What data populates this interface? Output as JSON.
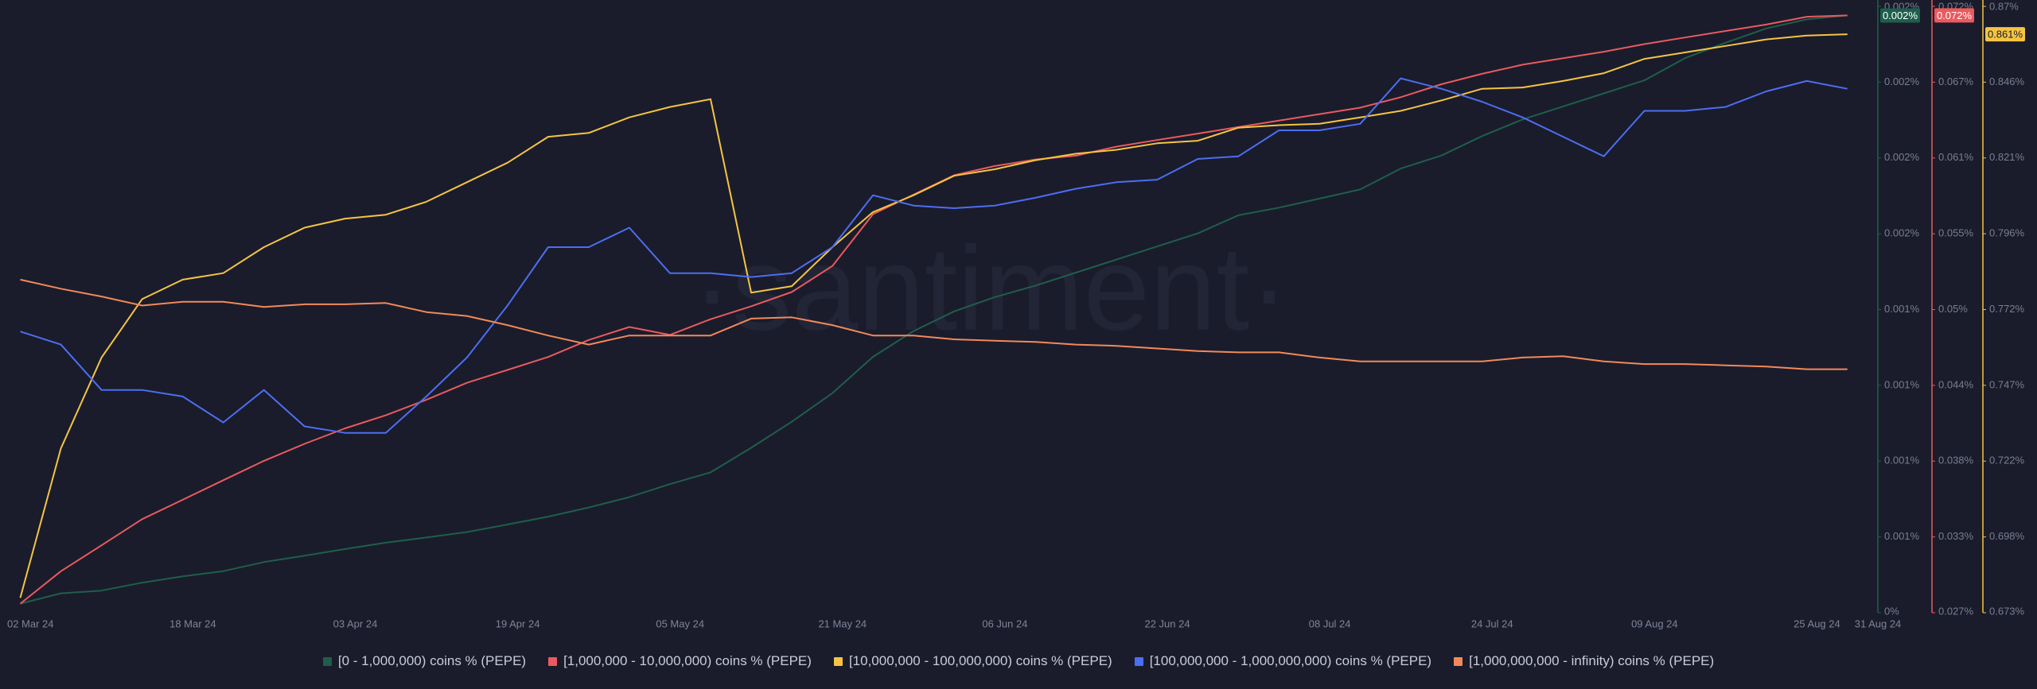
{
  "chart_data": {
    "type": "line",
    "watermark": "·santiment·",
    "x": [
      "2024-03-01",
      "2024-03-05",
      "2024-03-09",
      "2024-03-13",
      "2024-03-17",
      "2024-03-21",
      "2024-03-25",
      "2024-03-29",
      "2024-04-02",
      "2024-04-06",
      "2024-04-10",
      "2024-04-14",
      "2024-04-18",
      "2024-04-22",
      "2024-04-26",
      "2024-04-30",
      "2024-05-04",
      "2024-05-08",
      "2024-05-12",
      "2024-05-16",
      "2024-05-20",
      "2024-05-24",
      "2024-05-28",
      "2024-06-01",
      "2024-06-05",
      "2024-06-09",
      "2024-06-13",
      "2024-06-17",
      "2024-06-21",
      "2024-06-25",
      "2024-06-29",
      "2024-07-03",
      "2024-07-07",
      "2024-07-11",
      "2024-07-15",
      "2024-07-19",
      "2024-07-23",
      "2024-07-27",
      "2024-07-31",
      "2024-08-04",
      "2024-08-08",
      "2024-08-12",
      "2024-08-16",
      "2024-08-20",
      "2024-08-24",
      "2024-08-28"
    ],
    "xlim": [
      "2024-02-28",
      "2024-08-31"
    ],
    "xticks": [
      {
        "value": "2024-03-02",
        "label": "02 Mar 24"
      },
      {
        "value": "2024-03-18",
        "label": "18 Mar 24"
      },
      {
        "value": "2024-04-03",
        "label": "03 Apr 24"
      },
      {
        "value": "2024-04-19",
        "label": "19 Apr 24"
      },
      {
        "value": "2024-05-05",
        "label": "05 May 24"
      },
      {
        "value": "2024-05-21",
        "label": "21 May 24"
      },
      {
        "value": "2024-06-06",
        "label": "06 Jun 24"
      },
      {
        "value": "2024-06-22",
        "label": "22 Jun 24"
      },
      {
        "value": "2024-07-08",
        "label": "08 Jul 24"
      },
      {
        "value": "2024-07-24",
        "label": "24 Jul 24"
      },
      {
        "value": "2024-08-09",
        "label": "09 Aug 24"
      },
      {
        "value": "2024-08-25",
        "label": "25 Aug 24"
      },
      {
        "value": "2024-08-31",
        "label": "31 Aug 24"
      }
    ],
    "ylim": [
      0.0003,
      0.0023
    ],
    "yticks": [
      {
        "value": 0.0003,
        "label": "0%"
      },
      {
        "value": 0.00055,
        "label": "0.001%"
      },
      {
        "value": 0.0008,
        "label": "0.001%"
      },
      {
        "value": 0.00105,
        "label": "0.001%"
      },
      {
        "value": 0.0013,
        "label": "0.001%"
      },
      {
        "value": 0.00155,
        "label": "0.002%"
      },
      {
        "value": 0.0018,
        "label": "0.002%"
      },
      {
        "value": 0.00205,
        "label": "0.002%"
      },
      {
        "value": 0.0023,
        "label": "0.002%"
      }
    ],
    "y2lim": [
      0.0272,
      0.0722
    ],
    "y2ticks": [
      {
        "value": 0.0272,
        "label": "0.027%"
      },
      {
        "value": 0.032825,
        "label": "0.033%"
      },
      {
        "value": 0.03845,
        "label": "0.038%"
      },
      {
        "value": 0.044075,
        "label": "0.044%"
      },
      {
        "value": 0.0497,
        "label": "0.05%"
      },
      {
        "value": 0.055325,
        "label": "0.055%"
      },
      {
        "value": 0.06095,
        "label": "0.061%"
      },
      {
        "value": 0.066575,
        "label": "0.067%"
      },
      {
        "value": 0.0722,
        "label": "0.072%"
      }
    ],
    "y3lim": [
      0.6732,
      0.8702
    ],
    "y3ticks": [
      {
        "value": 0.6732,
        "label": "0.673%"
      },
      {
        "value": 0.697825,
        "label": "0.698%"
      },
      {
        "value": 0.72245,
        "label": "0.722%"
      },
      {
        "value": 0.747075,
        "label": "0.747%"
      },
      {
        "value": 0.7717,
        "label": "0.772%"
      },
      {
        "value": 0.796325,
        "label": "0.796%"
      },
      {
        "value": 0.82095,
        "label": "0.821%"
      },
      {
        "value": 0.845575,
        "label": "0.846%"
      },
      {
        "value": 0.8702,
        "label": "0.87%"
      }
    ],
    "grid": false,
    "legend": "bottom",
    "series": [
      {
        "name": "[0 - 1,000,000) coins % (PEPE)",
        "color": "#1f5e4b",
        "axis": "y",
        "last_value_label": "0.002%",
        "values": [
          0.00033,
          0.000364,
          0.000373,
          0.000399,
          0.00042,
          0.000437,
          0.000467,
          0.000488,
          0.00051,
          0.000531,
          0.000548,
          0.000566,
          0.000591,
          0.000617,
          0.000647,
          0.000681,
          0.000724,
          0.000763,
          0.000844,
          0.00093,
          0.001024,
          0.001144,
          0.001229,
          0.001294,
          0.001341,
          0.001379,
          0.001422,
          0.001465,
          0.001508,
          0.001551,
          0.001611,
          0.001636,
          0.001666,
          0.001696,
          0.001765,
          0.001808,
          0.001872,
          0.001927,
          0.00197,
          0.002013,
          0.002056,
          0.002129,
          0.00218,
          0.002227,
          0.002257,
          0.00227
        ]
      },
      {
        "name": "[1,000,000 - 10,000,000) coins % (PEPE)",
        "color": "#ea5a5e",
        "axis": "y2",
        "last_value_label": "0.072%",
        "values": [
          0.02787,
          0.03028,
          0.0322,
          0.03414,
          0.03558,
          0.03703,
          0.03847,
          0.03973,
          0.04088,
          0.04185,
          0.043,
          0.04426,
          0.04522,
          0.04618,
          0.04744,
          0.0484,
          0.04782,
          0.04898,
          0.04994,
          0.051,
          0.05293,
          0.05678,
          0.05823,
          0.05967,
          0.06035,
          0.06083,
          0.06112,
          0.06179,
          0.06228,
          0.06276,
          0.06324,
          0.06372,
          0.0642,
          0.06468,
          0.06546,
          0.06642,
          0.06719,
          0.06787,
          0.06835,
          0.06883,
          0.0694,
          0.06989,
          0.07037,
          0.07085,
          0.07143,
          0.07153
        ]
      },
      {
        "name": "[10,000,000 - 100,000,000) coins % (PEPE)",
        "color": "#f5c443",
        "axis": "y3",
        "last_value_label": "0.861%",
        "values": [
          0.67806,
          0.72657,
          0.7561,
          0.77509,
          0.78141,
          0.78352,
          0.79196,
          0.79829,
          0.80124,
          0.8025,
          0.80672,
          0.81305,
          0.81938,
          0.82782,
          0.82908,
          0.83414,
          0.83752,
          0.84005,
          0.77719,
          0.7793,
          0.79196,
          0.80335,
          0.80883,
          0.81516,
          0.81727,
          0.82022,
          0.82233,
          0.8236,
          0.82571,
          0.82655,
          0.83077,
          0.83161,
          0.83203,
          0.83414,
          0.83625,
          0.83963,
          0.84342,
          0.84385,
          0.84595,
          0.84849,
          0.85313,
          0.85523,
          0.85734,
          0.85945,
          0.86072,
          0.86114
        ]
      },
      {
        "name": "[100,000,000 - 1,000,000,000) coins % (PEPE)",
        "color": "#4c6ef2",
        "axis": "y3",
        "values": [
          0.76454,
          0.76032,
          0.74556,
          0.74556,
          0.74345,
          0.73501,
          0.74556,
          0.73374,
          0.73164,
          0.73164,
          0.74345,
          0.7561,
          0.77298,
          0.79196,
          0.79196,
          0.79829,
          0.78352,
          0.78352,
          0.78226,
          0.78352,
          0.79196,
          0.80883,
          0.80546,
          0.80461,
          0.80546,
          0.80799,
          0.81094,
          0.81305,
          0.8139,
          0.82064,
          0.82149,
          0.82992,
          0.82992,
          0.83203,
          0.8468,
          0.84342,
          0.83921,
          0.83414,
          0.82782,
          0.82149,
          0.83625,
          0.83625,
          0.83752,
          0.84258,
          0.84595,
          0.84342
        ]
      },
      {
        "name": "[1,000,000,000 - infinity) coins % (PEPE)",
        "color": "#f2895a",
        "axis": "y3",
        "values": [
          0.78141,
          0.77846,
          0.77593,
          0.77298,
          0.77424,
          0.77424,
          0.77255,
          0.7734,
          0.7734,
          0.77382,
          0.77087,
          0.7696,
          0.76665,
          0.76327,
          0.76032,
          0.76327,
          0.76327,
          0.76327,
          0.76876,
          0.76918,
          0.76665,
          0.76327,
          0.76327,
          0.76201,
          0.76159,
          0.76116,
          0.76032,
          0.7599,
          0.75906,
          0.75821,
          0.75779,
          0.75779,
          0.7561,
          0.75484,
          0.75484,
          0.75484,
          0.75484,
          0.7561,
          0.75652,
          0.75484,
          0.75399,
          0.75399,
          0.75357,
          0.75315,
          0.75231,
          0.75231
        ]
      }
    ]
  }
}
